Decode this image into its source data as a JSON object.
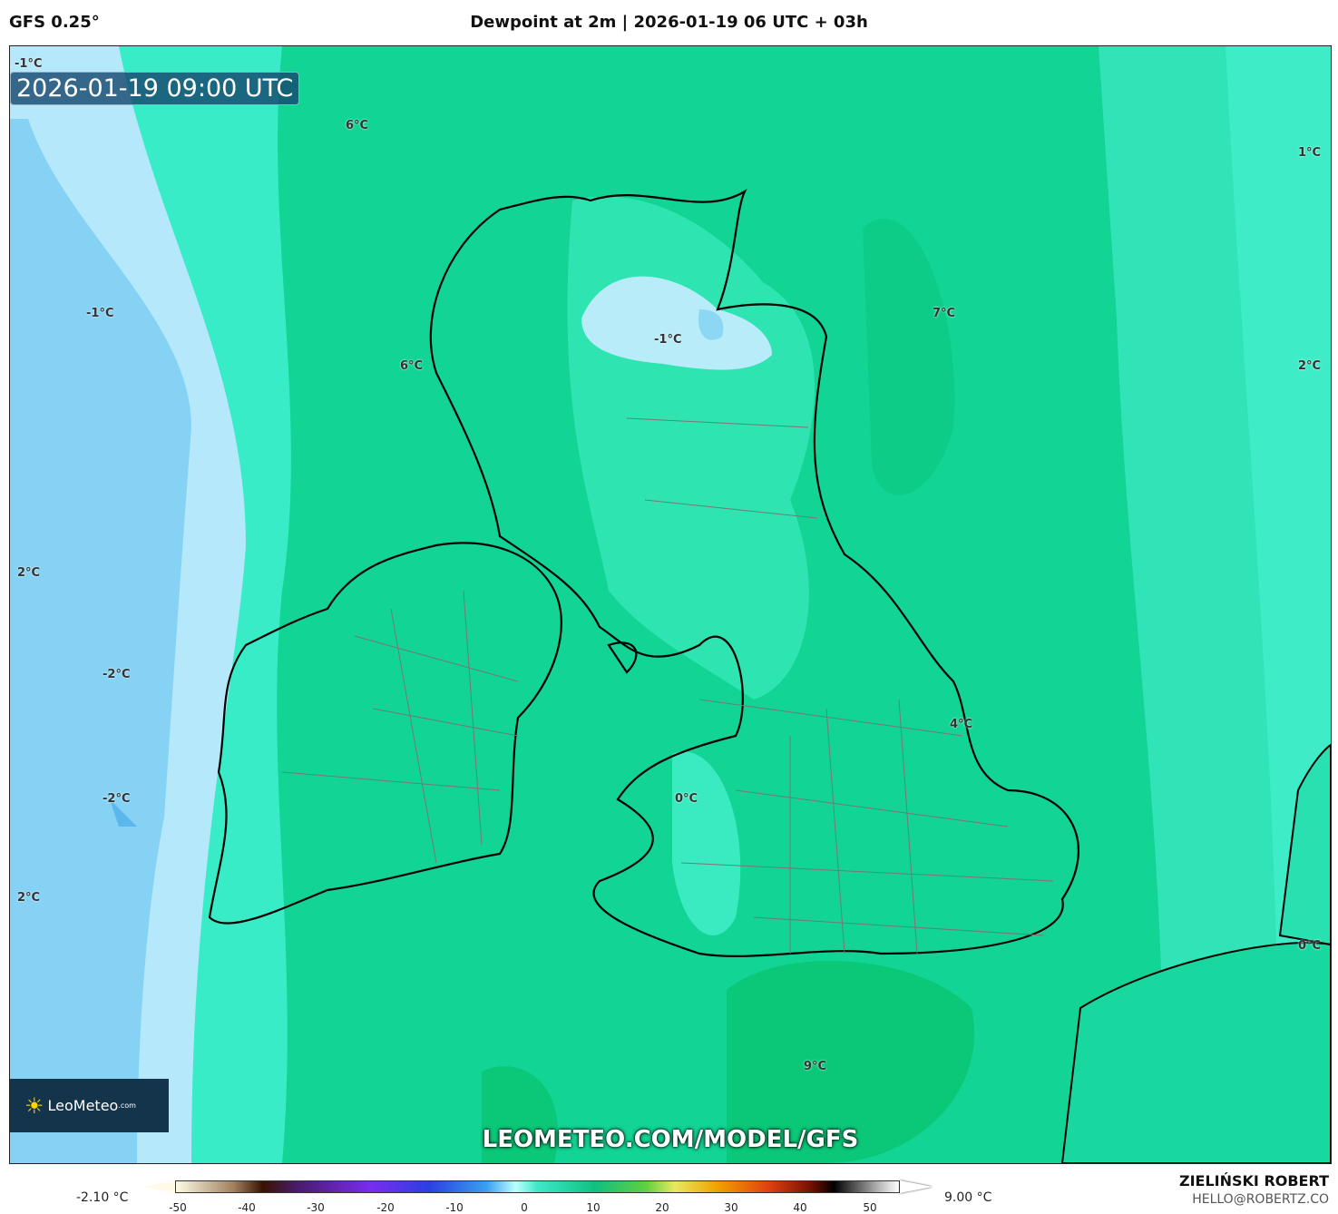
{
  "header": {
    "model": "GFS 0.25°",
    "title": "Dewpoint at 2m | 2026-01-19 06 UTC + 03h"
  },
  "map": {
    "valid_time": "2026-01-19 09:00 UTC",
    "contour_labels": [
      "-1°C",
      "6°C",
      "1°C",
      "-1°C",
      "6°C",
      "-1°C",
      "7°C",
      "2°C",
      "2°C",
      "-2°C",
      "4°C",
      "-2°C",
      "0°C",
      "2°C",
      "0°C",
      "9°C"
    ],
    "logo": {
      "name": "LeoMeteo",
      "suffix": ".com"
    },
    "watermark": "LEOMETEO.COM/MODEL/GFS"
  },
  "legend": {
    "min": "-2.10 °C",
    "max": "9.00 °C",
    "ticks": [
      "-50",
      "-40",
      "-30",
      "-20",
      "-10",
      "0",
      "10",
      "20",
      "30",
      "40",
      "50"
    ]
  },
  "credits": {
    "author": "ZIELIŃSKI ROBERT",
    "email": "HELLO@ROBERTZ.CO"
  }
}
